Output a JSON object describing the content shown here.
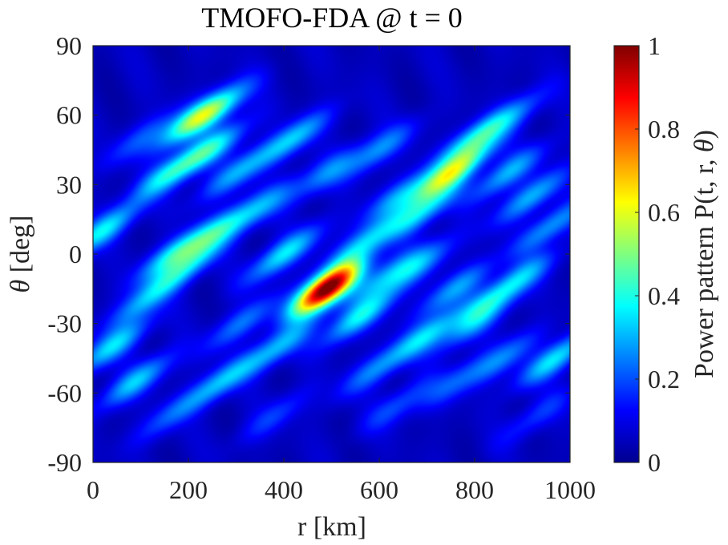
{
  "chart_data": {
    "type": "heatmap",
    "title": "TMOFO-FDA @ t = 0",
    "xlabel": "r [km]",
    "ylabel_symbol": "θ",
    "ylabel_unit": "[deg]",
    "colorbar_label_prefix": "Power pattern P(t, r, ",
    "colorbar_label_symbol": "θ",
    "colorbar_label_suffix": ")",
    "xlim": [
      0,
      1000
    ],
    "ylim": [
      -90,
      90
    ],
    "clim": [
      0,
      1
    ],
    "colormap": "jet",
    "x_ticks": [
      {
        "value": 0,
        "label": "0"
      },
      {
        "value": 200,
        "label": "200"
      },
      {
        "value": 400,
        "label": "400"
      },
      {
        "value": 600,
        "label": "600"
      },
      {
        "value": 800,
        "label": "800"
      },
      {
        "value": 1000,
        "label": "1000"
      }
    ],
    "y_ticks": [
      {
        "value": 90,
        "label": "90"
      },
      {
        "value": 60,
        "label": "60"
      },
      {
        "value": 30,
        "label": "30"
      },
      {
        "value": 0,
        "label": "0"
      },
      {
        "value": -30,
        "label": "-30"
      },
      {
        "value": -60,
        "label": "-60"
      },
      {
        "value": -90,
        "label": "-90"
      }
    ],
    "colorbar_ticks": [
      {
        "value": 1,
        "label": "1"
      },
      {
        "value": 0.8,
        "label": "0.8"
      },
      {
        "value": 0.6,
        "label": "0.6"
      },
      {
        "value": 0.4,
        "label": "0.4"
      },
      {
        "value": 0.2,
        "label": "0.2"
      },
      {
        "value": 0,
        "label": "0"
      }
    ],
    "background_level": 0.06,
    "peaks": [
      {
        "r": 490,
        "theta": -15,
        "value": 1.0
      },
      {
        "r": 400,
        "theta": 0,
        "value": 0.3
      },
      {
        "r": 560,
        "theta": -27,
        "value": 0.3
      },
      {
        "r": 160,
        "theta": 35,
        "value": 0.28
      },
      {
        "r": 245,
        "theta": 45,
        "value": 0.3
      },
      {
        "r": 210,
        "theta": 58,
        "value": 0.32
      },
      {
        "r": 255,
        "theta": 62,
        "value": 0.28
      },
      {
        "r": 300,
        "theta": 35,
        "value": 0.22
      },
      {
        "r": 350,
        "theta": 20,
        "value": 0.2
      },
      {
        "r": 420,
        "theta": 50,
        "value": 0.26
      },
      {
        "r": 20,
        "theta": 10,
        "value": 0.3
      },
      {
        "r": 110,
        "theta": -20,
        "value": 0.22
      },
      {
        "r": 170,
        "theta": 0,
        "value": 0.3
      },
      {
        "r": 200,
        "theta": -5,
        "value": 0.26
      },
      {
        "r": 260,
        "theta": 10,
        "value": 0.24
      },
      {
        "r": 40,
        "theta": -40,
        "value": 0.28
      },
      {
        "r": 90,
        "theta": -55,
        "value": 0.26
      },
      {
        "r": 160,
        "theta": -70,
        "value": 0.14
      },
      {
        "r": 270,
        "theta": -55,
        "value": 0.24
      },
      {
        "r": 310,
        "theta": -30,
        "value": 0.18
      },
      {
        "r": 390,
        "theta": -40,
        "value": 0.24
      },
      {
        "r": 570,
        "theta": 5,
        "value": 0.26
      },
      {
        "r": 490,
        "theta": 35,
        "value": 0.18
      },
      {
        "r": 600,
        "theta": 45,
        "value": 0.2
      },
      {
        "r": 640,
        "theta": 25,
        "value": 0.2
      },
      {
        "r": 690,
        "theta": 18,
        "value": 0.26
      },
      {
        "r": 720,
        "theta": 30,
        "value": 0.24
      },
      {
        "r": 770,
        "theta": 38,
        "value": 0.32
      },
      {
        "r": 800,
        "theta": 50,
        "value": 0.28
      },
      {
        "r": 870,
        "theta": 35,
        "value": 0.24
      },
      {
        "r": 920,
        "theta": 25,
        "value": 0.24
      },
      {
        "r": 960,
        "theta": 12,
        "value": 0.22
      },
      {
        "r": 610,
        "theta": -10,
        "value": 0.2
      },
      {
        "r": 680,
        "theta": -5,
        "value": 0.22
      },
      {
        "r": 760,
        "theta": -15,
        "value": 0.22
      },
      {
        "r": 830,
        "theta": -20,
        "value": 0.18
      },
      {
        "r": 900,
        "theta": -10,
        "value": 0.2
      },
      {
        "r": 700,
        "theta": -35,
        "value": 0.26
      },
      {
        "r": 800,
        "theta": -30,
        "value": 0.2
      },
      {
        "r": 590,
        "theta": -50,
        "value": 0.18
      },
      {
        "r": 640,
        "theta": -65,
        "value": 0.14
      },
      {
        "r": 760,
        "theta": -55,
        "value": 0.14
      },
      {
        "r": 860,
        "theta": -45,
        "value": 0.18
      },
      {
        "r": 970,
        "theta": -45,
        "value": 0.3
      },
      {
        "r": 930,
        "theta": -70,
        "value": 0.12
      },
      {
        "r": 100,
        "theta": 50,
        "value": 0.14
      },
      {
        "r": 880,
        "theta": 60,
        "value": 0.16
      },
      {
        "r": 380,
        "theta": -70,
        "value": 0.12
      }
    ]
  }
}
